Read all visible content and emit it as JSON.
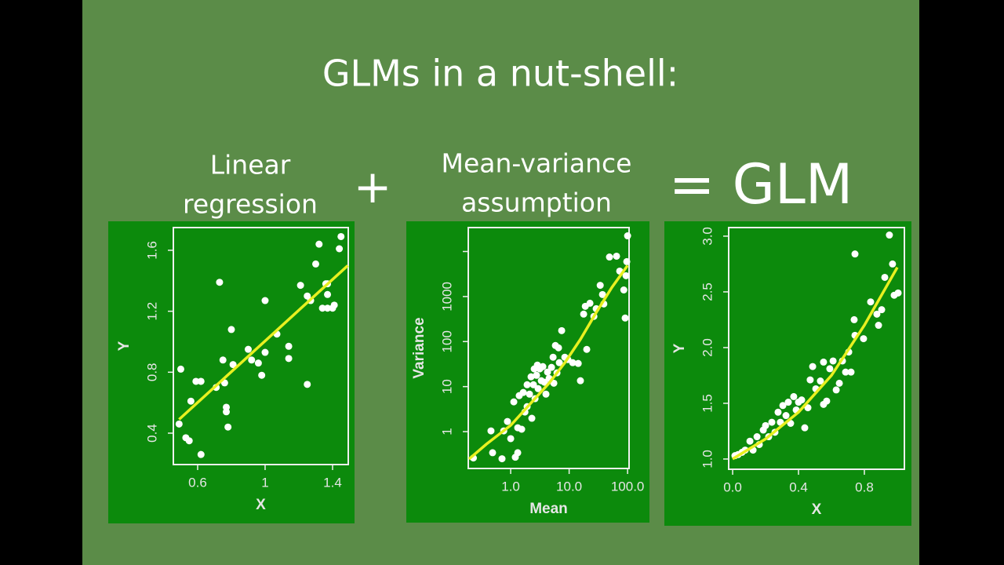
{
  "slide": {
    "title": "GLMs in a nut-shell:",
    "terms": [
      [
        "Linear",
        "regression"
      ],
      [
        "+"
      ],
      [
        "Mean-variance",
        "assumption"
      ],
      [
        "= GLM"
      ]
    ]
  },
  "chart_data": [
    {
      "type": "scatter",
      "x_label": "X",
      "y_label": "Y",
      "xlim": [
        0.456,
        1.493
      ],
      "ylim": [
        0.194,
        1.749
      ],
      "xticks": [
        0.6,
        1.0,
        1.4
      ],
      "yticks": [
        0.4,
        0.8,
        1.2,
        1.6
      ],
      "xlog": false,
      "ylog": false,
      "series": [
        {
          "type": "scatter",
          "color": "#ffffff",
          "x": [
            0.5,
            0.49,
            0.53,
            0.55,
            0.56,
            0.59,
            0.62,
            0.62,
            0.71,
            0.73,
            0.75,
            0.76,
            0.77,
            0.77,
            0.78,
            0.8,
            0.81,
            0.9,
            0.92,
            0.96,
            0.98,
            1.0,
            1.0,
            1.07,
            1.14,
            1.14,
            1.21,
            1.25,
            1.25,
            1.27,
            1.3,
            1.32,
            1.34,
            1.36,
            1.37,
            1.37,
            1.4,
            1.41,
            1.44,
            1.45,
            1.37
          ],
          "values": [
            0.82,
            0.46,
            0.37,
            0.35,
            0.61,
            0.74,
            0.74,
            0.26,
            0.7,
            1.39,
            0.88,
            0.73,
            0.57,
            0.54,
            0.44,
            1.08,
            0.85,
            0.95,
            0.88,
            0.86,
            0.78,
            0.93,
            1.27,
            1.05,
            0.97,
            0.89,
            1.37,
            0.72,
            1.3,
            1.27,
            1.51,
            1.64,
            1.22,
            1.38,
            1.31,
            1.22,
            1.22,
            1.24,
            1.61,
            1.69,
            1.38
          ]
        },
        {
          "type": "line",
          "color": "#e8f020",
          "x": [
            0.49,
            1.49
          ],
          "values": [
            0.49,
            1.5
          ]
        }
      ]
    },
    {
      "type": "scatter",
      "x_label": "Mean",
      "y_label": "Variance",
      "xlim": [
        0.188,
        106
      ],
      "ylim": [
        0.152,
        34000
      ],
      "xticks": [
        {
          "value": 1,
          "label": "1.0"
        },
        {
          "value": 10,
          "label": "10.0"
        },
        {
          "value": 100,
          "label": "100.0"
        }
      ],
      "yticks": [
        1,
        10,
        100,
        1000,
        {
          "value": 10000,
          "label": null
        }
      ],
      "xlog": true,
      "ylog": true,
      "series": [
        {
          "type": "scatter",
          "color": "#ffffff",
          "x": [
            0.23,
            0.46,
            0.49,
            0.71,
            0.76,
            0.88,
            1.0,
            1.13,
            1.2,
            1.32,
            1.32,
            1.4,
            1.54,
            1.64,
            1.75,
            1.91,
            1.91,
            2.1,
            2.23,
            2.3,
            2.45,
            2.53,
            2.61,
            2.77,
            2.86,
            2.95,
            3.14,
            3.34,
            3.55,
            3.78,
            4.01,
            4.27,
            4.54,
            4.99,
            5.31,
            5.47,
            5.82,
            6.19,
            6.58,
            6.79,
            7.45,
            8.43,
            9.52,
            11.5,
            14.3,
            15.6,
            17.7,
            18.9,
            20,
            22.7,
            26.5,
            29,
            34,
            37.2,
            39.2,
            49,
            64.7,
            73.3,
            86.1,
            90.9,
            96.8,
            100,
            94
          ],
          "values": [
            0.26,
            1.04,
            0.34,
            0.25,
            1.04,
            1.68,
            0.7,
            4.58,
            0.27,
            1.22,
            0.34,
            6.3,
            1.13,
            7.4,
            2.72,
            11,
            3.6,
            6.8,
            16.5,
            1.98,
            11,
            24.7,
            5.4,
            17.8,
            30.1,
            9,
            24.7,
            13.5,
            27.8,
            12.5,
            6.8,
            21,
            15.2,
            26.7,
            44.9,
            11.9,
            81.7,
            20.2,
            72.6,
            34,
            175,
            44.9,
            39.8,
            34,
            32.7,
            13.5,
            407,
            607,
            67,
            710,
            362,
            537,
            1776,
            1108,
            684,
            7540,
            7870,
            3670,
            1400,
            333,
            5960,
            22300,
            2900
          ]
        },
        {
          "type": "line",
          "color": "#e8f020",
          "x": [
            0.194,
            0.384,
            1.0,
            2.45,
            4.54,
            8.43,
            15.6,
            29,
            53.8,
            100
          ],
          "values": [
            0.247,
            0.527,
            1.38,
            4.97,
            11.9,
            34,
            112,
            440,
            1600,
            4870
          ]
        }
      ]
    },
    {
      "type": "scatter",
      "x_label": "X",
      "y_label": "Y",
      "xlim": [
        -0.024,
        1.043
      ],
      "ylim": [
        0.908,
        3.077
      ],
      "xticks": [
        {
          "value": 0,
          "label": "0.0"
        },
        0.4,
        0.8
      ],
      "yticks": [
        {
          "value": 1,
          "label": "1.0"
        },
        1.5,
        {
          "value": 2,
          "label": "2.0"
        },
        2.5,
        {
          "value": 3,
          "label": "3.0"
        }
      ],
      "xlog": false,
      "ylog": false,
      "series": [
        {
          "type": "scatter",
          "color": "#ffffff",
          "x": [
            0.014,
            0.033,
            0.057,
            0.076,
            0.105,
            0.124,
            0.148,
            0.162,
            0.186,
            0.2,
            0.219,
            0.238,
            0.257,
            0.276,
            0.29,
            0.305,
            0.324,
            0.338,
            0.352,
            0.371,
            0.386,
            0.4,
            0.419,
            0.438,
            0.457,
            0.471,
            0.486,
            0.505,
            0.533,
            0.552,
            0.571,
            0.552,
            0.59,
            0.61,
            0.629,
            0.648,
            0.667,
            0.686,
            0.705,
            0.719,
            0.743,
            0.738,
            0.743,
            0.795,
            0.838,
            0.876,
            0.886,
            0.905,
            0.924,
            0.952,
            0.971,
            0.981,
            1.005
          ],
          "values": [
            1.03,
            1.04,
            1.06,
            1.08,
            1.16,
            1.08,
            1.2,
            1.13,
            1.26,
            1.3,
            1.2,
            1.33,
            1.24,
            1.42,
            1.33,
            1.48,
            1.39,
            1.51,
            1.32,
            1.56,
            1.44,
            1.51,
            1.53,
            1.28,
            1.46,
            1.71,
            1.83,
            1.63,
            1.7,
            1.49,
            1.52,
            1.87,
            1.81,
            1.88,
            1.62,
            1.68,
            1.88,
            1.78,
            1.96,
            1.78,
            2.11,
            2.25,
            2.84,
            2.08,
            2.41,
            2.3,
            2.2,
            2.34,
            2.63,
            3.01,
            2.75,
            2.47,
            2.49
          ]
        },
        {
          "type": "line",
          "color": "#e8f020",
          "x": [
            0,
            0.2,
            0.4,
            0.6,
            0.8,
            1.0
          ],
          "values": [
            1.0,
            1.18,
            1.42,
            1.75,
            2.2,
            2.72
          ]
        }
      ]
    }
  ]
}
